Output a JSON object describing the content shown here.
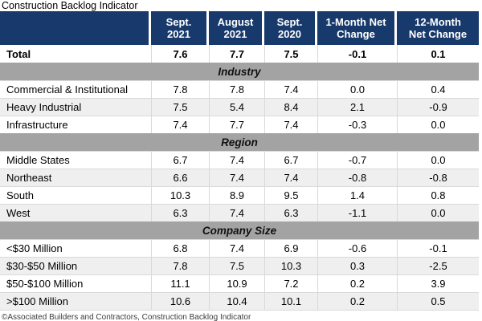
{
  "title": "Construction Backlog Indicator",
  "footer": "©Associated Builders and Contractors, Construction Backlog Indicator",
  "colors": {
    "header_bg": "#17396B",
    "band_bg": "#A3A3A3",
    "row_alt_bg": "#EFEFEF",
    "grid_line": "#D9D9D9",
    "footer_text": "#3C3C3C"
  },
  "chart_data": {
    "type": "table",
    "title": "Construction Backlog Indicator",
    "source_note": "©Associated Builders and Contractors, Construction Backlog Indicator",
    "header": [
      {
        "line1": "Sept.",
        "line2": "2021"
      },
      {
        "line1": "August",
        "line2": "2021"
      },
      {
        "line1": "Sept.",
        "line2": "2020"
      },
      {
        "line1": "1-Month Net",
        "line2": "Change"
      },
      {
        "line1": "12-Month",
        "line2": "Net Change"
      }
    ],
    "total": {
      "label": "Total",
      "values": [
        "7.6",
        "7.7",
        "7.5",
        "-0.1",
        "0.1"
      ]
    },
    "sections": [
      {
        "title": "Industry",
        "rows": [
          {
            "label": "Commercial & Institutional",
            "values": [
              "7.8",
              "7.8",
              "7.4",
              "0.0",
              "0.4"
            ]
          },
          {
            "label": "Heavy Industrial",
            "values": [
              "7.5",
              "5.4",
              "8.4",
              "2.1",
              "-0.9"
            ]
          },
          {
            "label": "Infrastructure",
            "values": [
              "7.4",
              "7.7",
              "7.4",
              "-0.3",
              "0.0"
            ]
          }
        ]
      },
      {
        "title": "Region",
        "rows": [
          {
            "label": "Middle States",
            "values": [
              "6.7",
              "7.4",
              "6.7",
              "-0.7",
              "0.0"
            ]
          },
          {
            "label": "Northeast",
            "values": [
              "6.6",
              "7.4",
              "7.4",
              "-0.8",
              "-0.8"
            ]
          },
          {
            "label": "South",
            "values": [
              "10.3",
              "8.9",
              "9.5",
              "1.4",
              "0.8"
            ]
          },
          {
            "label": "West",
            "values": [
              "6.3",
              "7.4",
              "6.3",
              "-1.1",
              "0.0"
            ]
          }
        ]
      },
      {
        "title": "Company Size",
        "rows": [
          {
            "label": "<$30 Million",
            "values": [
              "6.8",
              "7.4",
              "6.9",
              "-0.6",
              "-0.1"
            ]
          },
          {
            "label": "$30-$50 Million",
            "values": [
              "7.8",
              "7.5",
              "10.3",
              "0.3",
              "-2.5"
            ]
          },
          {
            "label": "$50-$100 Million",
            "values": [
              "11.1",
              "10.9",
              "7.2",
              "0.2",
              "3.9"
            ]
          },
          {
            "label": ">$100 Million",
            "values": [
              "10.6",
              "10.4",
              "10.1",
              "0.2",
              "0.5"
            ]
          }
        ]
      }
    ]
  }
}
